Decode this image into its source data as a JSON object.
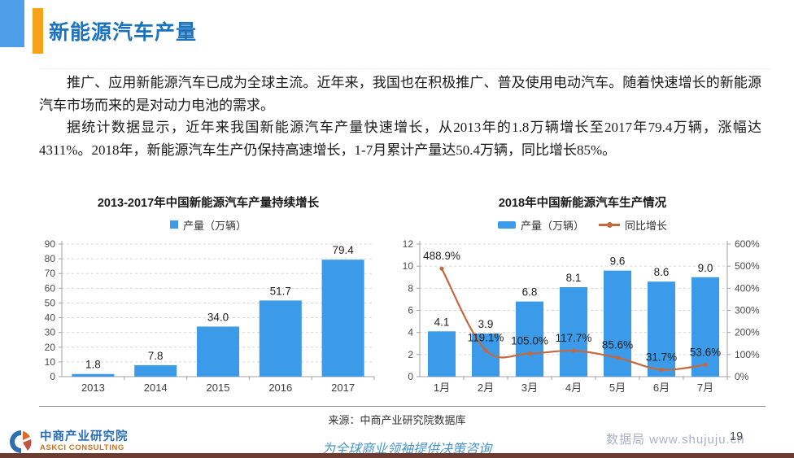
{
  "page": {
    "title": "新能源汽车产量",
    "paragraphs": [
      "推广、应用新能源汽车已成为全球主流。近年来，我国也在积极推广、普及使用电动汽车。随着快速增长的新能源汽车市场而来的是对动力电池的需求。",
      "据统计数据显示，近年来我国新能源汽车产量快速增长，从2013年的1.8万辆增长至2017年79.4万辆，涨幅达4311%。2018年，新能源汽车生产仍保持高速增长，1-7月累计产量达50.4万辆，同比增长85%。"
    ]
  },
  "chart_data": [
    {
      "type": "bar",
      "title": "2013-2017年中国新能源汽车产量持续增长",
      "categories": [
        "2013",
        "2014",
        "2015",
        "2016",
        "2017"
      ],
      "series": [
        {
          "name": "产量（万辆）",
          "type": "bar",
          "values": [
            1.8,
            7.8,
            34.0,
            51.7,
            79.4
          ]
        }
      ],
      "ylim": [
        0,
        90
      ],
      "ytick_step": 10,
      "grid": "dashed-horizontal",
      "legend_position": "top"
    },
    {
      "type": "bar+line",
      "title": "2018年中国新能源汽车生产情况",
      "categories": [
        "1月",
        "2月",
        "3月",
        "4月",
        "5月",
        "6月",
        "7月"
      ],
      "series": [
        {
          "name": "产量（万辆）",
          "type": "bar",
          "axis": "left",
          "values": [
            4.1,
            3.9,
            6.8,
            8.1,
            9.6,
            8.6,
            9.0
          ]
        },
        {
          "name": "同比增长",
          "type": "line",
          "axis": "right",
          "values": [
            488.9,
            119.1,
            105.0,
            117.7,
            85.6,
            31.7,
            53.6
          ],
          "label_suffix": "%"
        }
      ],
      "left_ylim": [
        0,
        12
      ],
      "left_ytick_step": 2,
      "right_ylim": [
        0,
        600
      ],
      "right_ytick_step": 100,
      "right_label_suffix": "%",
      "grid": "dashed-horizontal",
      "legend_position": "top"
    }
  ],
  "source_note": "来源：中商产业研究院数据库",
  "footer": {
    "logo_cn": "中商产业研究院",
    "logo_en": "ASKCI CONSULTING",
    "slogan": "为全球商业领袖提供决策咨询",
    "watermark": "数据局 www.shujuju.cn",
    "page_number": "19"
  },
  "colors": {
    "accent_blue": "#1B73BE",
    "accent_orange": "#F7A21B",
    "bar_blue": "#3B9BE8",
    "line_orange": "#C4693F",
    "grid_gray": "#d8d8d8",
    "axis_gray": "#a0a0a0"
  }
}
